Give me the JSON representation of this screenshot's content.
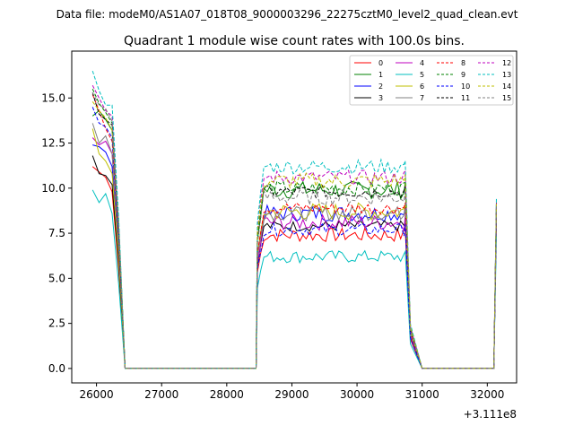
{
  "suptitle": "Data file: modeM0/AS1A07_018T08_9000003296_22275cztM0_level2_quad_clean.evt",
  "chart_data": {
    "type": "line",
    "title": "Quadrant 1 module wise count rates with 100.0s bins.",
    "xlabel": "",
    "ylabel": "",
    "x_offset_label": "+3.111e8",
    "xlim": [
      25620,
      32450
    ],
    "ylim": [
      -0.8,
      17.6
    ],
    "x_ticks": [
      26000,
      27000,
      28000,
      29000,
      30000,
      31000,
      32000
    ],
    "x_tick_labels": [
      "26000",
      "27000",
      "28000",
      "29000",
      "30000",
      "31000",
      "32000"
    ],
    "y_ticks": [
      0,
      2.5,
      5,
      7.5,
      10,
      12.5,
      15
    ],
    "y_tick_labels": [
      "0.0",
      "2.5",
      "5.0",
      "7.5",
      "10.0",
      "12.5",
      "15.0"
    ],
    "grid": false,
    "legend_position": "top-right",
    "legend_columns": 4,
    "segments": {
      "seg1": {
        "x_start": 25940,
        "step": 100,
        "count": 5,
        "end_x": 26440
      },
      "zero1": {
        "x_start": 26440,
        "x_end": 28450
      },
      "seg2": {
        "x_start": 28470,
        "x_end": 30760,
        "step": 50
      },
      "zero2": {
        "x_start": 30760,
        "x_end": 31000
      },
      "seg3_end": 32140
    },
    "series": [
      {
        "name": "0",
        "color": "#ff0000",
        "dash": false,
        "seg1": [
          11.2,
          10.9,
          10.6,
          9.8,
          5.5
        ],
        "seg2_level": 7.4,
        "seg2_amp": 0.4,
        "seg3_end": 8.9
      },
      {
        "name": "1",
        "color": "#008000",
        "dash": false,
        "seg1": [
          14.0,
          14.3,
          13.8,
          13.2,
          8.0
        ],
        "seg2_level": 9.9,
        "seg2_amp": 0.5,
        "seg3_end": 9.2
      },
      {
        "name": "2",
        "color": "#0000ff",
        "dash": false,
        "seg1": [
          12.4,
          12.3,
          12.0,
          11.2,
          6.5
        ],
        "seg2_level": 8.6,
        "seg2_amp": 0.45,
        "seg3_end": 8.4
      },
      {
        "name": "3",
        "color": "#000000",
        "dash": false,
        "seg1": [
          11.8,
          10.8,
          10.7,
          10.2,
          5.8
        ],
        "seg2_level": 7.9,
        "seg2_amp": 0.3,
        "seg3_end": 8.2
      },
      {
        "name": "4",
        "color": "#bf00bf",
        "dash": false,
        "seg1": [
          12.8,
          12.4,
          12.6,
          11.9,
          6.9
        ],
        "seg2_level": 8.1,
        "seg2_amp": 0.45,
        "seg3_end": 8.3
      },
      {
        "name": "5",
        "color": "#00bfbf",
        "dash": false,
        "seg1": [
          9.9,
          9.2,
          9.7,
          8.6,
          4.7
        ],
        "seg2_level": 6.2,
        "seg2_amp": 0.35,
        "seg3_end": 7.4
      },
      {
        "name": "6",
        "color": "#bfbf00",
        "dash": false,
        "seg1": [
          13.3,
          11.9,
          11.5,
          10.8,
          6.2
        ],
        "seg2_level": 8.7,
        "seg2_amp": 0.5,
        "seg3_end": 8.8
      },
      {
        "name": "7",
        "color": "#808080",
        "dash": false,
        "seg1": [
          13.6,
          12.5,
          12.9,
          11.9,
          6.8
        ],
        "seg2_level": 8.6,
        "seg2_amp": 0.4,
        "seg3_end": 8.6
      },
      {
        "name": "8",
        "color": "#ff0000",
        "dash": true,
        "seg1": [
          15.2,
          14.3,
          13.3,
          12.6,
          7.3
        ],
        "seg2_level": 8.9,
        "seg2_amp": 0.35,
        "seg3_end": 8.7
      },
      {
        "name": "9",
        "color": "#008000",
        "dash": true,
        "seg1": [
          15.5,
          14.7,
          14.2,
          13.6,
          7.9
        ],
        "seg2_level": 10.0,
        "seg2_amp": 0.4,
        "seg3_end": 9.1
      },
      {
        "name": "10",
        "color": "#0000ff",
        "dash": true,
        "seg1": [
          14.5,
          13.6,
          13.4,
          12.8,
          7.2
        ],
        "seg2_level": 7.7,
        "seg2_amp": 0.35,
        "seg3_end": 8.5
      },
      {
        "name": "11",
        "color": "#000000",
        "dash": true,
        "seg1": [
          15.3,
          14.1,
          13.8,
          13.5,
          7.6
        ],
        "seg2_level": 9.8,
        "seg2_amp": 0.35,
        "seg3_end": 9.0
      },
      {
        "name": "12",
        "color": "#bf00bf",
        "dash": true,
        "seg1": [
          15.7,
          15.0,
          14.3,
          14.0,
          8.0
        ],
        "seg2_level": 10.6,
        "seg2_amp": 0.4,
        "seg3_end": 9.3
      },
      {
        "name": "13",
        "color": "#00bfbf",
        "dash": true,
        "seg1": [
          16.5,
          15.4,
          14.6,
          14.6,
          8.4
        ],
        "seg2_level": 11.2,
        "seg2_amp": 0.4,
        "seg3_end": 9.5
      },
      {
        "name": "14",
        "color": "#bfbf00",
        "dash": true,
        "seg1": [
          14.8,
          14.3,
          13.9,
          13.2,
          7.8
        ],
        "seg2_level": 10.4,
        "seg2_amp": 0.45,
        "seg3_end": 9.2
      },
      {
        "name": "15",
        "color": "#808080",
        "dash": true,
        "seg1": [
          15.3,
          14.6,
          14.4,
          13.7,
          7.9
        ],
        "seg2_level": 9.5,
        "seg2_amp": 0.45,
        "seg3_end": 9.0
      }
    ]
  }
}
